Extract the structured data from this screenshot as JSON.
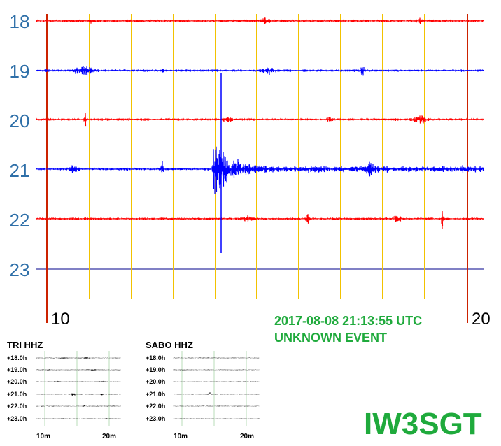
{
  "drum": {
    "hours": [
      "18",
      "19",
      "20",
      "21",
      "22",
      "23"
    ],
    "trace_colors": [
      "#ff0000",
      "#0000ff",
      "#ff0000",
      "#0000ff",
      "#ff0000",
      "#0000ff"
    ],
    "grid_color": "#f2c200",
    "marker_color": "#cc2200",
    "minute_start_label": "10",
    "minute_end_label": "20"
  },
  "event": {
    "datetime": "2017-08-08 21:13:55 UTC",
    "type": "UNKNOWN EVENT"
  },
  "station_callsign": "IW3SGT",
  "mini_helicorders": [
    {
      "title": "TRI HHZ",
      "hour_labels": [
        "+18.0h",
        "+19.0h",
        "+20.0h",
        "+21.0h",
        "+22.0h",
        "+23.0h"
      ],
      "x_labels": [
        "10m",
        "20m"
      ]
    },
    {
      "title": "SABO HHZ",
      "hour_labels": [
        "+18.0h",
        "+19.0h",
        "+20.0h",
        "+21.0h",
        "+22.0h",
        "+23.0h"
      ],
      "x_labels": [
        "10m",
        "20m"
      ]
    }
  ]
}
